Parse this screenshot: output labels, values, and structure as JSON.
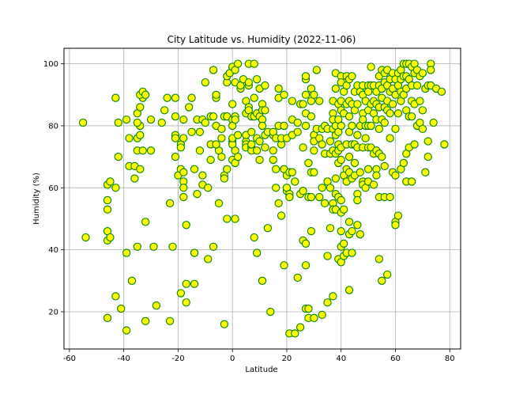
{
  "chart_data": {
    "type": "scatter",
    "title": "City Latitude vs. Humidity (2022-11-06)",
    "xlabel": "Latitude",
    "ylabel": "Humidity (%)",
    "xlim": [
      -62,
      84
    ],
    "ylim": [
      8,
      105
    ],
    "xticks": [
      -60,
      -40,
      -20,
      0,
      20,
      40,
      60,
      80
    ],
    "yticks": [
      20,
      40,
      60,
      80,
      100
    ],
    "grid": true,
    "marker_face_color": "#ffff00",
    "marker_edge_color": "#008000",
    "points": [
      [
        -55,
        81
      ],
      [
        -54,
        44
      ],
      [
        -46,
        61
      ],
      [
        -46,
        56
      ],
      [
        -46,
        53
      ],
      [
        -46,
        46
      ],
      [
        -46,
        43
      ],
      [
        -45,
        44
      ],
      [
        -45,
        62
      ],
      [
        -46,
        18
      ],
      [
        -43,
        89
      ],
      [
        -43,
        60
      ],
      [
        -43,
        25
      ],
      [
        -41,
        21
      ],
      [
        -42,
        81
      ],
      [
        -42,
        70
      ],
      [
        -39,
        14
      ],
      [
        -39,
        39
      ],
      [
        -38,
        67
      ],
      [
        -38,
        76
      ],
      [
        -39,
        82
      ],
      [
        -37,
        30
      ],
      [
        -36,
        63
      ],
      [
        -35,
        41
      ],
      [
        -36,
        67
      ],
      [
        -35,
        72
      ],
      [
        -35,
        76
      ],
      [
        -34,
        80
      ],
      [
        -35,
        81
      ],
      [
        -35,
        84
      ],
      [
        -34,
        86
      ],
      [
        -33,
        89
      ],
      [
        -34,
        90
      ],
      [
        -33,
        91
      ],
      [
        -32,
        90
      ],
      [
        -34,
        77
      ],
      [
        -33,
        72
      ],
      [
        -34,
        66
      ],
      [
        -32,
        49
      ],
      [
        -32,
        17
      ],
      [
        -30,
        82
      ],
      [
        -30,
        72
      ],
      [
        -29,
        41
      ],
      [
        -28,
        22
      ],
      [
        -26,
        81
      ],
      [
        -25,
        85
      ],
      [
        -24,
        89
      ],
      [
        -23,
        55
      ],
      [
        -23,
        17
      ],
      [
        -22,
        41
      ],
      [
        -21,
        83
      ],
      [
        -21,
        77
      ],
      [
        -21,
        76
      ],
      [
        -21,
        70
      ],
      [
        -20,
        64
      ],
      [
        -19,
        26
      ],
      [
        -21,
        89
      ],
      [
        -19,
        74
      ],
      [
        -19,
        73
      ],
      [
        -19,
        66
      ],
      [
        -18,
        82
      ],
      [
        -18,
        76
      ],
      [
        -18,
        65
      ],
      [
        -18,
        62
      ],
      [
        -18,
        60
      ],
      [
        -18,
        57
      ],
      [
        -17,
        48
      ],
      [
        -17,
        23
      ],
      [
        -17,
        29
      ],
      [
        -16,
        86
      ],
      [
        -15,
        89
      ],
      [
        -15,
        78
      ],
      [
        -14,
        66
      ],
      [
        -14,
        29
      ],
      [
        -14,
        39
      ],
      [
        -13,
        82
      ],
      [
        -13,
        58
      ],
      [
        -12,
        78
      ],
      [
        -12,
        72
      ],
      [
        -11,
        82
      ],
      [
        -11,
        64
      ],
      [
        -11,
        61
      ],
      [
        -10,
        94
      ],
      [
        -10,
        81
      ],
      [
        -9,
        37
      ],
      [
        -9,
        60
      ],
      [
        -8,
        83
      ],
      [
        -8,
        74
      ],
      [
        -8,
        69
      ],
      [
        -7,
        83
      ],
      [
        -7,
        98
      ],
      [
        -7,
        41
      ],
      [
        -6,
        80
      ],
      [
        -6,
        89
      ],
      [
        -6,
        90
      ],
      [
        -5,
        72
      ],
      [
        -6,
        74
      ],
      [
        -5,
        55
      ],
      [
        -4,
        76
      ],
      [
        -4,
        70
      ],
      [
        -4,
        79
      ],
      [
        -3,
        83
      ],
      [
        -3,
        64
      ],
      [
        -3,
        63
      ],
      [
        -2,
        94
      ],
      [
        -2,
        83
      ],
      [
        -2,
        66
      ],
      [
        -2,
        96
      ],
      [
        -1,
        97
      ],
      [
        -1,
        97
      ],
      [
        0,
        87
      ],
      [
        0,
        82
      ],
      [
        0,
        80
      ],
      [
        0,
        75
      ],
      [
        0,
        74
      ],
      [
        1,
        72
      ],
      [
        0,
        69
      ],
      [
        1,
        68
      ],
      [
        -3,
        16
      ],
      [
        -2,
        50
      ],
      [
        0,
        99
      ],
      [
        1,
        98
      ],
      [
        1,
        94
      ],
      [
        1,
        83
      ],
      [
        1,
        82
      ],
      [
        0,
        76
      ],
      [
        2,
        77
      ],
      [
        2,
        70
      ],
      [
        1,
        50
      ],
      [
        2,
        100
      ],
      [
        3,
        92
      ],
      [
        3,
        93
      ],
      [
        4,
        95
      ],
      [
        5,
        88
      ],
      [
        5,
        84
      ],
      [
        5,
        75
      ],
      [
        5,
        74
      ],
      [
        5,
        77
      ],
      [
        5,
        73
      ],
      [
        6,
        100
      ],
      [
        6,
        86
      ],
      [
        6,
        85
      ],
      [
        6,
        93
      ],
      [
        6,
        94
      ],
      [
        7,
        83
      ],
      [
        7,
        78
      ],
      [
        7,
        73
      ],
      [
        7,
        72
      ],
      [
        7,
        74
      ],
      [
        8,
        100
      ],
      [
        8,
        83
      ],
      [
        8,
        89
      ],
      [
        9,
        95
      ],
      [
        9,
        84
      ],
      [
        9,
        76
      ],
      [
        9,
        72
      ],
      [
        8,
        44
      ],
      [
        9,
        39
      ],
      [
        10,
        83
      ],
      [
        10,
        92
      ],
      [
        10,
        75
      ],
      [
        10,
        69
      ],
      [
        11,
        82
      ],
      [
        11,
        87
      ],
      [
        11,
        80
      ],
      [
        11,
        85
      ],
      [
        11,
        30
      ],
      [
        12,
        85
      ],
      [
        12,
        77
      ],
      [
        12,
        73
      ],
      [
        12,
        93
      ],
      [
        13,
        78
      ],
      [
        13,
        47
      ],
      [
        14,
        20
      ],
      [
        15,
        69
      ],
      [
        15,
        77
      ],
      [
        15,
        78
      ],
      [
        15,
        72
      ],
      [
        16,
        76
      ],
      [
        16,
        66
      ],
      [
        16,
        60
      ],
      [
        17,
        92
      ],
      [
        17,
        89
      ],
      [
        17,
        80
      ],
      [
        17,
        55
      ],
      [
        18,
        51
      ],
      [
        18,
        74
      ],
      [
        18,
        76
      ],
      [
        19,
        80
      ],
      [
        19,
        90
      ],
      [
        19,
        66
      ],
      [
        19,
        35
      ],
      [
        20,
        59
      ],
      [
        20,
        76
      ],
      [
        20,
        64
      ],
      [
        20,
        60
      ],
      [
        21,
        65
      ],
      [
        21,
        58
      ],
      [
        21,
        57
      ],
      [
        21,
        13
      ],
      [
        22,
        88
      ],
      [
        22,
        82
      ],
      [
        22,
        77
      ],
      [
        22,
        65
      ],
      [
        23,
        62
      ],
      [
        23,
        13
      ],
      [
        24,
        81
      ],
      [
        24,
        78
      ],
      [
        24,
        31
      ],
      [
        25,
        87
      ],
      [
        25,
        58
      ],
      [
        25,
        15
      ],
      [
        26,
        87
      ],
      [
        26,
        73
      ],
      [
        26,
        59
      ],
      [
        26,
        43
      ],
      [
        27,
        90
      ],
      [
        27,
        95
      ],
      [
        27,
        96
      ],
      [
        27,
        84
      ],
      [
        27,
        80
      ],
      [
        27,
        42
      ],
      [
        27,
        35
      ],
      [
        27,
        21
      ],
      [
        28,
        21
      ],
      [
        28,
        18
      ],
      [
        28,
        68
      ],
      [
        28,
        57
      ],
      [
        29,
        92
      ],
      [
        29,
        88
      ],
      [
        29,
        83
      ],
      [
        29,
        65
      ],
      [
        29,
        57
      ],
      [
        29,
        46
      ],
      [
        30,
        90
      ],
      [
        30,
        77
      ],
      [
        30,
        75
      ],
      [
        30,
        72
      ],
      [
        30,
        65
      ],
      [
        30,
        18
      ],
      [
        31,
        98
      ],
      [
        31,
        79
      ],
      [
        32,
        88
      ],
      [
        32,
        76
      ],
      [
        32,
        57
      ],
      [
        33,
        79
      ],
      [
        33,
        74
      ],
      [
        33,
        60
      ],
      [
        33,
        19
      ],
      [
        34,
        71
      ],
      [
        34,
        80
      ],
      [
        34,
        55
      ],
      [
        35,
        79
      ],
      [
        35,
        62
      ],
      [
        35,
        38
      ],
      [
        35,
        23
      ],
      [
        36,
        75
      ],
      [
        36,
        71
      ],
      [
        36,
        60
      ],
      [
        36,
        47
      ],
      [
        37,
        88
      ],
      [
        37,
        84
      ],
      [
        37,
        82
      ],
      [
        37,
        79
      ],
      [
        37,
        72
      ],
      [
        37,
        55
      ],
      [
        37,
        53
      ],
      [
        37,
        25
      ],
      [
        38,
        92
      ],
      [
        38,
        97
      ],
      [
        38,
        80
      ],
      [
        38,
        77
      ],
      [
        38,
        71
      ],
      [
        38,
        63
      ],
      [
        38,
        58
      ],
      [
        38,
        53
      ],
      [
        39,
        87
      ],
      [
        39,
        82
      ],
      [
        39,
        78
      ],
      [
        39,
        74
      ],
      [
        39,
        72
      ],
      [
        39,
        68
      ],
      [
        39,
        57
      ],
      [
        39,
        37
      ],
      [
        40,
        96
      ],
      [
        40,
        94
      ],
      [
        40,
        88
      ],
      [
        40,
        85
      ],
      [
        40,
        80
      ],
      [
        40,
        73
      ],
      [
        40,
        69
      ],
      [
        40,
        56
      ],
      [
        40,
        52
      ],
      [
        40,
        46
      ],
      [
        40,
        41
      ],
      [
        40,
        36
      ],
      [
        41,
        91
      ],
      [
        41,
        84
      ],
      [
        41,
        64
      ],
      [
        41,
        53
      ],
      [
        41,
        42
      ],
      [
        41,
        38
      ],
      [
        42,
        96
      ],
      [
        42,
        93
      ],
      [
        42,
        87
      ],
      [
        42,
        74
      ],
      [
        42,
        66
      ],
      [
        42,
        62
      ],
      [
        42,
        39
      ],
      [
        43,
        95
      ],
      [
        43,
        88
      ],
      [
        43,
        83
      ],
      [
        43,
        78
      ],
      [
        43,
        70
      ],
      [
        43,
        65
      ],
      [
        43,
        49
      ],
      [
        43,
        45
      ],
      [
        43,
        27
      ],
      [
        44,
        96
      ],
      [
        44,
        87
      ],
      [
        44,
        80
      ],
      [
        44,
        74
      ],
      [
        44,
        63
      ],
      [
        44,
        46
      ],
      [
        44,
        39
      ],
      [
        45,
        91
      ],
      [
        45,
        85
      ],
      [
        45,
        74
      ],
      [
        45,
        68
      ],
      [
        45,
        64
      ],
      [
        46,
        93
      ],
      [
        46,
        87
      ],
      [
        46,
        77
      ],
      [
        46,
        73
      ],
      [
        46,
        58
      ],
      [
        46,
        56
      ],
      [
        46,
        48
      ],
      [
        47,
        91
      ],
      [
        47,
        80
      ],
      [
        47,
        65
      ],
      [
        47,
        45
      ],
      [
        48,
        93
      ],
      [
        48,
        90
      ],
      [
        48,
        84
      ],
      [
        48,
        82
      ],
      [
        48,
        73
      ],
      [
        48,
        62
      ],
      [
        48,
        61
      ],
      [
        49,
        88
      ],
      [
        49,
        80
      ],
      [
        49,
        76
      ],
      [
        49,
        60
      ],
      [
        50,
        93
      ],
      [
        50,
        91
      ],
      [
        50,
        85
      ],
      [
        50,
        80
      ],
      [
        50,
        73
      ],
      [
        50,
        66
      ],
      [
        50,
        62
      ],
      [
        51,
        99
      ],
      [
        51,
        93
      ],
      [
        51,
        87
      ],
      [
        51,
        80
      ],
      [
        51,
        73
      ],
      [
        52,
        93
      ],
      [
        52,
        88
      ],
      [
        52,
        84
      ],
      [
        52,
        71
      ],
      [
        52,
        61
      ],
      [
        53,
        91
      ],
      [
        53,
        87
      ],
      [
        53,
        82
      ],
      [
        53,
        72
      ],
      [
        53,
        66
      ],
      [
        53,
        64
      ],
      [
        54,
        96
      ],
      [
        54,
        93
      ],
      [
        54,
        86
      ],
      [
        54,
        79
      ],
      [
        54,
        71
      ],
      [
        54,
        57
      ],
      [
        54,
        37
      ],
      [
        55,
        98
      ],
      [
        55,
        92
      ],
      [
        55,
        89
      ],
      [
        55,
        82
      ],
      [
        55,
        70
      ],
      [
        55,
        30
      ],
      [
        56,
        97
      ],
      [
        56,
        94
      ],
      [
        56,
        86
      ],
      [
        56,
        81
      ],
      [
        56,
        67
      ],
      [
        56,
        57
      ],
      [
        57,
        98
      ],
      [
        57,
        93
      ],
      [
        57,
        88
      ],
      [
        57,
        85
      ],
      [
        57,
        32
      ],
      [
        58,
        95
      ],
      [
        58,
        91
      ],
      [
        58,
        84
      ],
      [
        58,
        76
      ],
      [
        58,
        57
      ],
      [
        59,
        97
      ],
      [
        59,
        92
      ],
      [
        59,
        87
      ],
      [
        59,
        65
      ],
      [
        60,
        95
      ],
      [
        60,
        90
      ],
      [
        60,
        79
      ],
      [
        60,
        64
      ],
      [
        60,
        49
      ],
      [
        60,
        48
      ],
      [
        61,
        97
      ],
      [
        61,
        93
      ],
      [
        61,
        84
      ],
      [
        61,
        51
      ],
      [
        62,
        98
      ],
      [
        62,
        95
      ],
      [
        62,
        91
      ],
      [
        62,
        88
      ],
      [
        62,
        66
      ],
      [
        63,
        100
      ],
      [
        63,
        96
      ],
      [
        63,
        90
      ],
      [
        63,
        68
      ],
      [
        64,
        100
      ],
      [
        64,
        96
      ],
      [
        64,
        92
      ],
      [
        64,
        85
      ],
      [
        64,
        71
      ],
      [
        64,
        62
      ],
      [
        65,
        100
      ],
      [
        65,
        95
      ],
      [
        65,
        83
      ],
      [
        65,
        73
      ],
      [
        66,
        99
      ],
      [
        66,
        93
      ],
      [
        66,
        88
      ],
      [
        66,
        83
      ],
      [
        66,
        62
      ],
      [
        67,
        100
      ],
      [
        67,
        97
      ],
      [
        67,
        87
      ],
      [
        67,
        74
      ],
      [
        68,
        98
      ],
      [
        68,
        93
      ],
      [
        68,
        80
      ],
      [
        69,
        96
      ],
      [
        69,
        88
      ],
      [
        69,
        81
      ],
      [
        70,
        97
      ],
      [
        70,
        85
      ],
      [
        70,
        79
      ],
      [
        71,
        92
      ],
      [
        71,
        65
      ],
      [
        72,
        93
      ],
      [
        72,
        75
      ],
      [
        72,
        70
      ],
      [
        73,
        100
      ],
      [
        73,
        98
      ],
      [
        73,
        93
      ],
      [
        74,
        81
      ],
      [
        75,
        92
      ],
      [
        77,
        91
      ],
      [
        78,
        74
      ]
    ]
  }
}
